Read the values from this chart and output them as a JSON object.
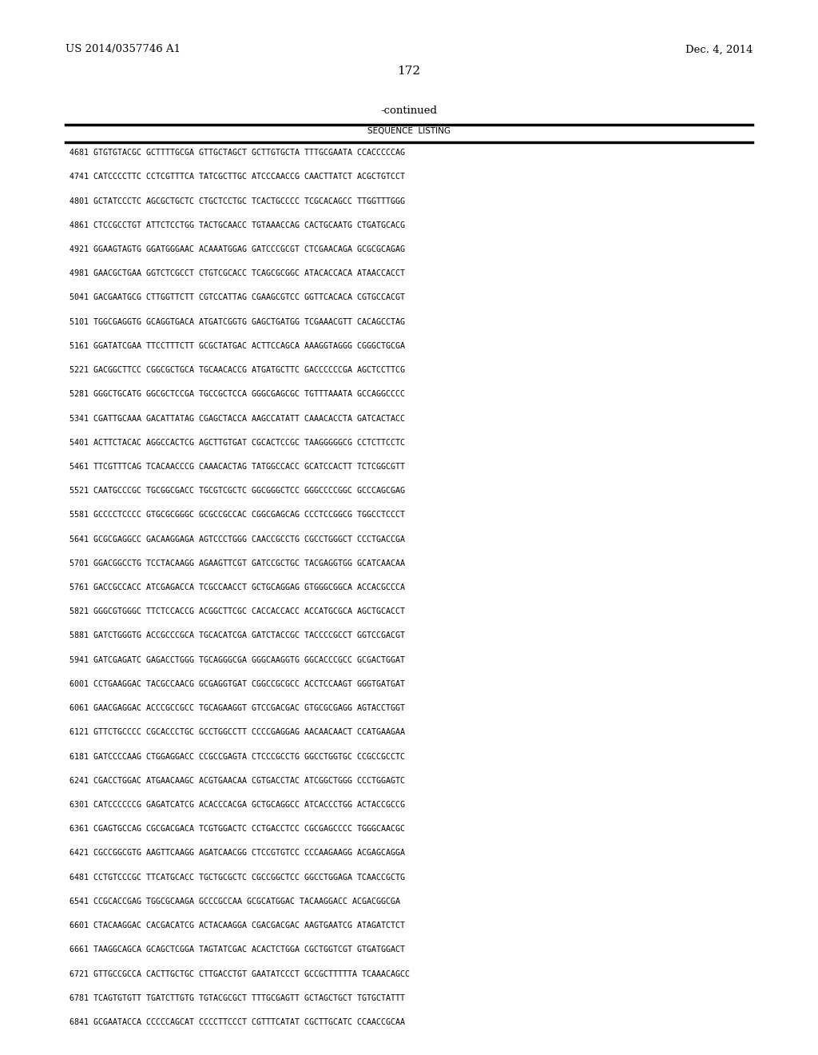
{
  "patent_number": "US 2014/0357746 A1",
  "date": "Dec. 4, 2014",
  "page_number": "172",
  "continued_label": "-continued",
  "table_header": "SEQUENCE  LISTING",
  "background_color": "#ffffff",
  "text_color": "#000000",
  "sequence_lines": [
    "4681 GTGTGTACGC GCTTTTGCGA GTTGCTAGCT GCTTGTGCTA TTTGCGAATA CCACCCCCAG",
    "4741 CATCCCCTTC CCTCGTTTCA TATCGCTTGC ATCCCAACCG CAACTTATCT ACGCTGTCCT",
    "4801 GCTATCCCTC AGCGCTGCTC CTGCTCCTGC TCACTGCCCC TCGCACAGCC TTGGTTTGGG",
    "4861 CTCCGCCTGT ATTCTCCTGG TACTGCAACC TGTAAACCAG CACTGCAATG CTGATGCACG",
    "4921 GGAAGTAGTG GGATGGGAAC ACAAATGGAG GATCCCGCGT CTCGAACAGA GCGCGCAGAG",
    "4981 GAACGCTGAA GGTCTCGCCT CTGTCGCACC TCAGCGCGGC ATACACCACA ATAACCACCT",
    "5041 GACGAATGCG CTTGGTTCTT CGTCCATTAG CGAAGCGTCC GGTTCACACA CGTGCCACGT",
    "5101 TGGCGAGGTG GCAGGTGACA ATGATCGGTG GAGCTGATGG TCGAAACGTT CACAGCCTAG",
    "5161 GGATATCGAA TTCCTTTCTT GCGCTATGAC ACTTCCAGCA AAAGGTAGGG CGGGCTGCGA",
    "5221 GACGGCTTCC CGGCGCTGCA TGCAACACCG ATGATGCTTC GACCCCCCGA AGCTCCTTCG",
    "5281 GGGCTGCATG GGCGCTCCGA TGCCGCTCCA GGGCGAGCGC TGTTTAAATA GCCAGGCCCC",
    "5341 CGATTGCAAA GACATTATAG CGAGCTACCA AAGCCATATT CAAACACCTA GATCACTACC",
    "5401 ACTTCTACAC AGGCCACTCG AGCTTGTGAT CGCACTCCGC TAAGGGGGCG CCTCTTCCTC",
    "5461 TTCGTTTCAG TCACAACCCG CAAACACTAG TATGGCCACC GCATCCACTT TCTCGGCGTT",
    "5521 CAATGCCCGC TGCGGCGACC TGCGTCGCTC GGCGGGCTCC GGGCCCCGGC GCCCAGCGAG",
    "5581 GCCCCTCCCC GTGCGCGGGC GCGCCGCCAC CGGCGAGCAG CCCTCCGGCG TGGCCTCCCT",
    "5641 GCGCGAGGCC GACAAGGAGA AGTCCCTGGG CAACCGCCTG CGCCTGGGCT CCCTGACCGA",
    "5701 GGACGGCCTG TCCTACAAGG AGAAGTTCGT GATCCGCTGC TACGAGGTGG GCATCAACAA",
    "5761 GACCGCCACC ATCGAGACCA TCGCCAACCT GCTGCAGGAG GTGGGCGGCA ACCACGCCCA",
    "5821 GGGCGTGGGC TTCTCCACCG ACGGCTTCGC CACCACCACC ACCATGCGCA AGCTGCACCT",
    "5881 GATCTGGGTG ACCGCCCGCA TGCACATCGA GATCTACCGC TACCCCGCCT GGTCCGACGT",
    "5941 GATCGAGATC GAGACCTGGG TGCAGGGCGA GGGCAAGGTG GGCACCCGCC GCGACTGGAT",
    "6001 CCTGAAGGAC TACGCCAACG GCGAGGTGAT CGGCCGCGCC ACCTCCAAGT GGGTGATGAT",
    "6061 GAACGAGGAC ACCCGCCGCC TGCAGAAGGT GTCCGACGAC GTGCGCGAGG AGTACCTGGT",
    "6121 GTTCTGCCCC CGCACCCTGC GCCTGGCCTT CCCCGAGGAG AACAACAACT CCATGAAGAA",
    "6181 GATCCCCAAG CTGGAGGACC CCGCCGAGTA CTCCCGCCTG GGCCTGGTGC CCGCCGCCTC",
    "6241 CGACCTGGAC ATGAACAAGC ACGTGAACAA CGTGACCTAC ATCGGCTGGG CCCTGGAGTC",
    "6301 CATCCCCCCG GAGATCATCG ACACCCACGA GCTGCAGGCC ATCACCCTGG ACTACCGCCG",
    "6361 CGAGTGCCAG CGCGACGACA TCGTGGACTC CCTGACCTCC CGCGAGCCCC TGGGCAACGC",
    "6421 CGCCGGCGTG AAGTTCAAGG AGATCAACGG CTCCGTGTCC CCCAAGAAGG ACGAGCAGGA",
    "6481 CCTGTCCCGC TTCATGCACC TGCTGCGCTC CGCCGGCTCC GGCCTGGAGA TCAACCGCTG",
    "6541 CCGCACCGAG TGGCGCAAGA GCCCGCCAA GCGCATGGAC TACAAGGACC ACGACGGCGA",
    "6601 CTACAAGGAC CACGACATCG ACTACAAGGA CGACGACGAC AAGTGAATCG ATAGATCTCT",
    "6661 TAAGGCAGCA GCAGCTCGGA TAGTATCGAC ACACTCTGGA CGCTGGTCGT GTGATGGACT",
    "6721 GTTGCCGCCA CACTTGCTGC CTTGACCTGT GAATATCCCT GCCGCTTTTTA TCAAACAGCC",
    "6781 TCAGTGTGTT TGATCTTGTG TGTACGCGCT TTTGCGAGTT GCTAGCTGCT TGTGCTATTT",
    "6841 GCGAATACCA CCCCCAGCAT CCCCTTCCCT CGTTTCATAT CGCTTGCATC CCAACCGCAA"
  ]
}
